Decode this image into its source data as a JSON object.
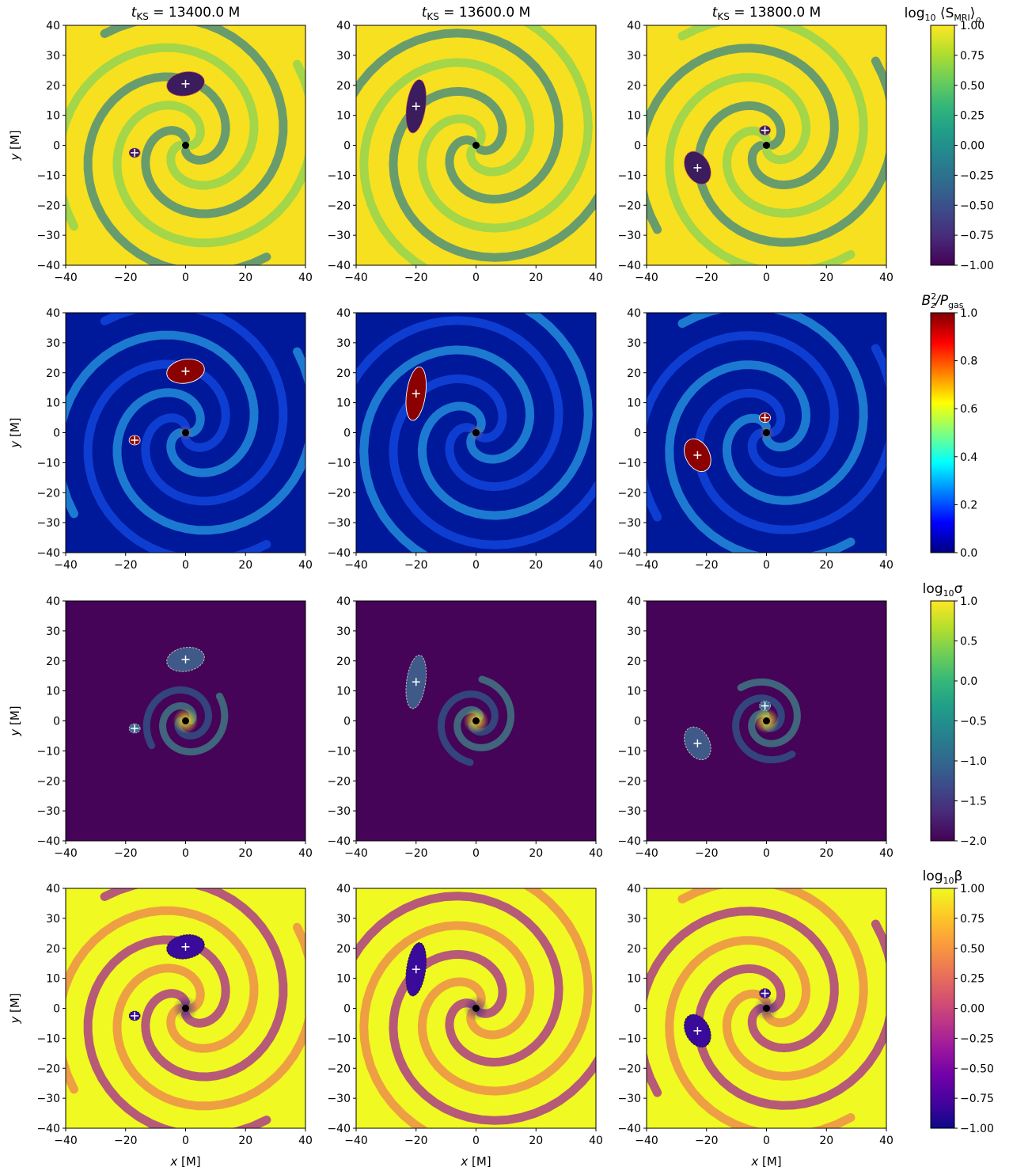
{
  "figure": {
    "column_titles": [
      {
        "pre": "t",
        "sub": "KS",
        "post": " = 13400.0 M"
      },
      {
        "pre": "t",
        "sub": "KS",
        "post": " = 13600.0 M"
      },
      {
        "pre": "t",
        "sub": "KS",
        "post": " = 13800.0 M"
      }
    ],
    "xlabel": {
      "pre": "x",
      "post": " [M]"
    },
    "ylabel": {
      "pre": "y",
      "post": " [M]"
    }
  },
  "chart_data": {
    "type": "heatmap",
    "xlim": [
      -40,
      40
    ],
    "ylim": [
      -40,
      40
    ],
    "x_ticks": [
      "−40",
      "−20",
      "0",
      "20",
      "40"
    ],
    "y_ticks": [
      "40",
      "30",
      "20",
      "10",
      "0",
      "−10",
      "−20",
      "−30",
      "−40"
    ],
    "times": [
      "13400.0 M",
      "13600.0 M",
      "13800.0 M"
    ],
    "markers": {
      "black_hole": {
        "x": 0,
        "y": 0
      },
      "plus_positions": [
        [
          {
            "x": 0,
            "y": 20.5
          },
          {
            "x": -17,
            "y": -2.5
          }
        ],
        [
          {
            "x": -20,
            "y": 13
          }
        ],
        [
          {
            "x": -23,
            "y": -7.5
          },
          {
            "x": -0.5,
            "y": 5
          }
        ]
      ]
    },
    "rows": [
      {
        "quantity": "log10 <S_MRI>_rho",
        "colorbar_label": {
          "main": "log",
          "sub": "10",
          "rest": " ⟨S",
          "sub2": "MRI",
          "after": "⟩",
          "sub3": "ρ"
        },
        "colormap": "viridis",
        "range": [
          -1.0,
          1.0
        ],
        "colorbar_ticks": [
          "1.00",
          "0.75",
          "0.50",
          "0.25",
          "0.00",
          "−0.25",
          "−0.50",
          "−0.75",
          "−1.00"
        ],
        "background": "#f7e01f",
        "contour_color": "#e05050"
      },
      {
        "quantity": "Bz^2 / P_gas",
        "colorbar_label": {
          "main": "B",
          "sub": "z",
          "sup": "2",
          "rest": "/P",
          "sub2": "gas"
        },
        "colormap": "jet",
        "range": [
          0.0,
          1.0
        ],
        "colorbar_ticks": [
          "1.0",
          "0.8",
          "0.6",
          "0.4",
          "0.2",
          "0.0"
        ],
        "background": "#00189a",
        "contour_color": "#ffffff"
      },
      {
        "quantity": "log10 sigma",
        "colorbar_label": {
          "main": "log",
          "sub": "10",
          "rest": "σ"
        },
        "colormap": "viridis",
        "range": [
          -2.0,
          1.0
        ],
        "colorbar_ticks": [
          "1.0",
          "0.5",
          "0.0",
          "−0.5",
          "−1.0",
          "−1.5",
          "−2.0"
        ],
        "background": "#450457",
        "contour_color": "#c8c8c8"
      },
      {
        "quantity": "log10 beta",
        "colorbar_label": {
          "main": "log",
          "sub": "10",
          "rest": "β"
        },
        "colormap": "plasma",
        "range": [
          -1.0,
          1.0
        ],
        "colorbar_ticks": [
          "1.00",
          "0.75",
          "0.50",
          "0.25",
          "0.00",
          "−0.25",
          "−0.50",
          "−0.75",
          "−1.00"
        ],
        "background": "#f0f921",
        "contour_color": "#202020"
      }
    ]
  }
}
